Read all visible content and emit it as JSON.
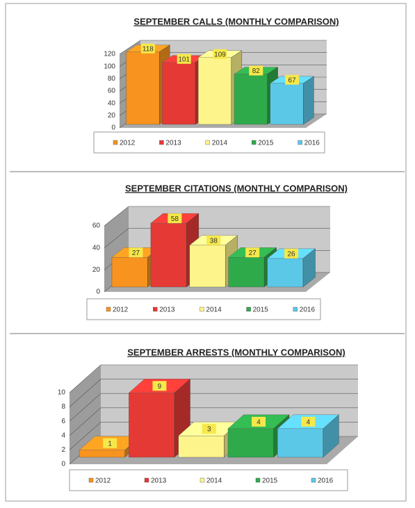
{
  "chart_data": [
    {
      "type": "bar",
      "title": "SEPTEMBER CALLS (MONTHLY COMPARISON)",
      "ylim": [
        0,
        120
      ],
      "yticks": [
        0,
        20,
        40,
        60,
        80,
        100,
        120
      ],
      "grid": true,
      "legend": "bottom",
      "series": [
        {
          "name": "2012",
          "color": "#f7931e",
          "values": [
            118
          ]
        },
        {
          "name": "2013",
          "color": "#e53935",
          "values": [
            101
          ]
        },
        {
          "name": "2014",
          "color": "#fdf58b",
          "values": [
            109
          ]
        },
        {
          "name": "2015",
          "color": "#2eaa4a",
          "values": [
            82
          ]
        },
        {
          "name": "2016",
          "color": "#5bc8e8",
          "values": [
            67
          ]
        }
      ]
    },
    {
      "type": "bar",
      "title": "SEPTEMBER CITATIONS (MONTHLY COMPARISON)",
      "ylim": [
        0,
        60
      ],
      "yticks": [
        0,
        20,
        40,
        60
      ],
      "grid": true,
      "legend": "bottom",
      "series": [
        {
          "name": "2012",
          "color": "#f7931e",
          "values": [
            27
          ]
        },
        {
          "name": "2013",
          "color": "#e53935",
          "values": [
            58
          ]
        },
        {
          "name": "2014",
          "color": "#fdf58b",
          "values": [
            38
          ]
        },
        {
          "name": "2015",
          "color": "#2eaa4a",
          "values": [
            27
          ]
        },
        {
          "name": "2016",
          "color": "#5bc8e8",
          "values": [
            26
          ]
        }
      ]
    },
    {
      "type": "bar",
      "title": "SEPTEMBER ARRESTS (MONTHLY COMPARISON)",
      "ylim": [
        0,
        10
      ],
      "yticks": [
        0,
        2,
        4,
        6,
        8,
        10
      ],
      "grid": true,
      "legend": "bottom",
      "series": [
        {
          "name": "2012",
          "color": "#f7931e",
          "values": [
            1
          ]
        },
        {
          "name": "2013",
          "color": "#e53935",
          "values": [
            9
          ]
        },
        {
          "name": "2014",
          "color": "#fdf58b",
          "values": [
            3
          ]
        },
        {
          "name": "2015",
          "color": "#2eaa4a",
          "values": [
            4
          ]
        },
        {
          "name": "2016",
          "color": "#5bc8e8",
          "values": [
            4
          ]
        }
      ]
    }
  ]
}
